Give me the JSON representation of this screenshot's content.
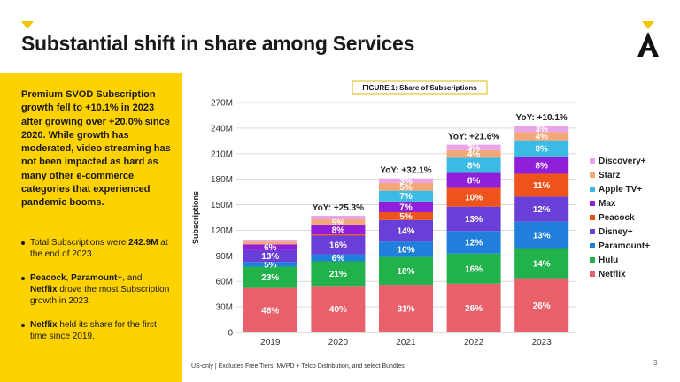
{
  "title": "Substantial shift in share among Services",
  "sidebar": {
    "intro": "Premium SVOD Subscription growth fell to +10.1% in 2023 after growing over +20.0% since 2020. While growth has moderated, video streaming has not been impacted as hard as many other e-commerce categories that experienced pandemic booms.",
    "bullet1_pre": "Total Subscriptions were ",
    "bullet1_bold": "242.9M",
    "bullet1_post": " at the end of 2023.",
    "bullet2_b1": "Peacock",
    "bullet2_sep": ", ",
    "bullet2_b2": "Paramount",
    "bullet2_mid": "+, and ",
    "bullet2_b3": "Netflix",
    "bullet2_post": " drove the most Subscription growth in 2023.",
    "bullet3_bold": "Netflix",
    "bullet3_post": " held its share for the first time since 2019."
  },
  "footnote": "US-only | Excludes Free Tiers, MVPD + Telco Distribution, and select Bundles",
  "page_number": "3",
  "chart_data": {
    "type": "bar",
    "stacked": true,
    "title": "FIGURE 1: Share of Subscriptions",
    "ylabel": "Subscriptions",
    "ylim": [
      0,
      270
    ],
    "yticks": [
      0,
      30,
      60,
      90,
      120,
      150,
      180,
      210,
      240,
      270
    ],
    "ytick_labels": [
      "0",
      "30M",
      "60M",
      "90M",
      "120M",
      "150M",
      "180M",
      "210M",
      "240M",
      "270M"
    ],
    "categories": [
      "2019",
      "2020",
      "2021",
      "2022",
      "2023"
    ],
    "totals": [
      109,
      137,
      181,
      220.6,
      242.9
    ],
    "yoy": [
      "",
      "YoY: +25.3%",
      "YoY: +32.1%",
      "YoY: +21.6%",
      "YoY: +10.1%"
    ],
    "legend_position": "right",
    "series": [
      {
        "name": "Netflix",
        "color": "#e8606a",
        "shares": [
          48,
          40,
          31,
          26,
          26
        ],
        "labels": [
          "48%",
          "40%",
          "31%",
          "26%",
          "26%"
        ]
      },
      {
        "name": "Hulu",
        "color": "#22b24c",
        "shares": [
          23,
          21,
          18,
          16,
          14
        ],
        "labels": [
          "23%",
          "21%",
          "18%",
          "16%",
          "14%"
        ]
      },
      {
        "name": "Paramount+",
        "color": "#1f7fdb",
        "shares": [
          5,
          6,
          10,
          12,
          13
        ],
        "labels": [
          "5%",
          "6%",
          "10%",
          "12%",
          "13%"
        ]
      },
      {
        "name": "Disney+",
        "color": "#6a3fd8",
        "shares": [
          13,
          16,
          14,
          13,
          12
        ],
        "labels": [
          "13%",
          "16%",
          "14%",
          "13%",
          "12%"
        ]
      },
      {
        "name": "Peacock",
        "color": "#f0521c",
        "shares": [
          0,
          1,
          5,
          10,
          11
        ],
        "labels": [
          "",
          "",
          "5%",
          "10%",
          "11%"
        ]
      },
      {
        "name": "Max",
        "color": "#8f1fd8",
        "shares": [
          6,
          8,
          7,
          8,
          8
        ],
        "labels": [
          "6%",
          "8%",
          "7%",
          "8%",
          "8%"
        ]
      },
      {
        "name": "Apple TV+",
        "color": "#3bbbe3",
        "shares": [
          0,
          0,
          7,
          8,
          8
        ],
        "labels": [
          "",
          "",
          "7%",
          "8%",
          "8%"
        ]
      },
      {
        "name": "Starz",
        "color": "#f4a878",
        "shares": [
          3,
          5,
          5,
          4,
          4
        ],
        "labels": [
          "",
          "5%",
          "5%",
          "4%",
          "4%"
        ]
      },
      {
        "name": "Discovery+",
        "color": "#e9a3e9",
        "shares": [
          2,
          3,
          3,
          3,
          3
        ],
        "labels": [
          "",
          "",
          "3%",
          "3%",
          "3%"
        ]
      }
    ]
  }
}
